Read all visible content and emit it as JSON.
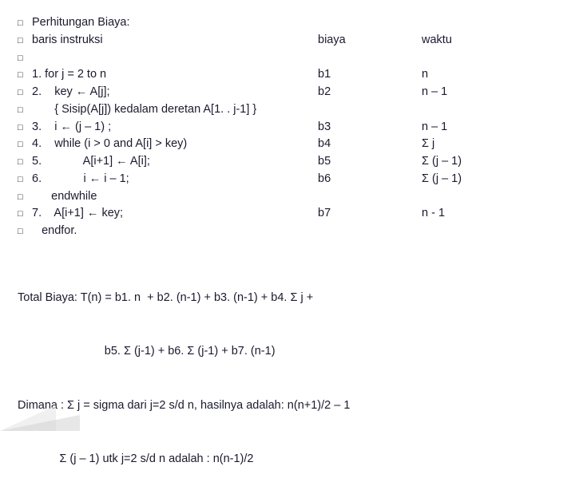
{
  "header": {
    "title": "Perhitungan Biaya:",
    "col_instr": "baris instruksi",
    "col_biaya": "biaya",
    "col_waktu": "waktu"
  },
  "rows": [
    {
      "instr": "1. for j = 2 to n",
      "biaya": "b1",
      "waktu": "n"
    },
    {
      "instr": "2.    key ← A[j];",
      "biaya": "b2",
      "waktu": "n – 1"
    },
    {
      "instr": "       { Sisip(A[j]) kedalam deretan A[1. . j-1] }",
      "biaya": "",
      "waktu": ""
    },
    {
      "instr": "3.    i ← (j – 1) ;",
      "biaya": "b3",
      "waktu": "n – 1"
    },
    {
      "instr": "4.    while (i > 0 and A[i] > key)",
      "biaya": "b4",
      "waktu": "Σ j"
    },
    {
      "instr": "5.             A[i+1] ← A[i];",
      "biaya": "b5",
      "waktu": "Σ (j – 1)"
    },
    {
      "instr": "6.             i ← i – 1;",
      "biaya": "b6",
      "waktu": "Σ (j – 1)"
    },
    {
      "instr": "      endwhile",
      "biaya": "",
      "waktu": ""
    },
    {
      "instr": "7.    A[i+1] ← key;",
      "biaya": "b7",
      "waktu": "n - 1"
    },
    {
      "instr": "   endfor.",
      "biaya": "",
      "waktu": ""
    }
  ],
  "total": {
    "line1": "Total Biaya: T(n) = b1. n  + b2. (n-1) + b3. (n-1) + b4. Σ j +",
    "line2": "                           b5. Σ (j-1) + b6. Σ (j-1) + b7. (n-1)",
    "line3": "Dimana : Σ j = sigma dari j=2 s/d n, hasilnya adalah: n(n+1)/2 – 1",
    "line4": "             Σ (j – 1) utk j=2 s/d n adalah : n(n-1)/2"
  }
}
